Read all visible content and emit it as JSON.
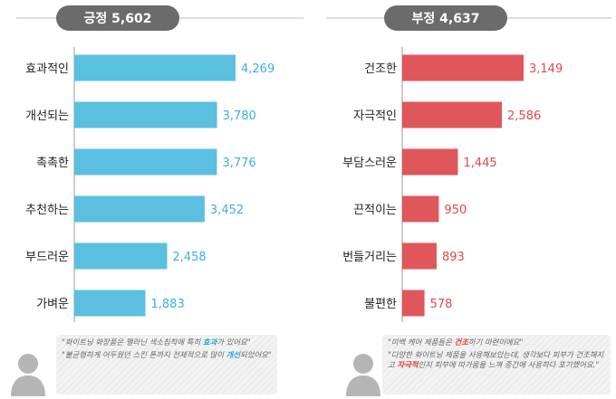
{
  "colors": {
    "positive": "#5bbfe0",
    "positive_text": "#3ab0dc",
    "negative": "#e0575b",
    "negative_text": "#e04848",
    "header_bg": "#6b6b6b",
    "gray_line": "#bbbbbb"
  },
  "chart_data": [
    {
      "type": "bar",
      "orientation": "horizontal",
      "title": "긍정",
      "total": "5,602",
      "categories": [
        "효과적인",
        "개선되는",
        "촉촉한",
        "추천하는",
        "부드러운",
        "가벼운"
      ],
      "values": [
        4269,
        3780,
        3776,
        3452,
        2458,
        1883
      ],
      "value_labels": [
        "4,269",
        "3,780",
        "3,776",
        "3,452",
        "2,458",
        "1,883"
      ]
    },
    {
      "type": "bar",
      "orientation": "horizontal",
      "title": "부정",
      "total": "4,637",
      "categories": [
        "건조한",
        "자극적인",
        "부담스러운",
        "끈적이는",
        "번들거리는",
        "불편한"
      ],
      "values": [
        3149,
        2586,
        1445,
        950,
        893,
        578
      ],
      "value_labels": [
        "3,149",
        "2,586",
        "1,445",
        "950",
        "893",
        "578"
      ]
    }
  ],
  "quotes": {
    "positive": [
      {
        "before": "\"화이트닝 화장품은 멜라닌 색소침착에 특히 ",
        "highlight": "효과",
        "after": "가 있어요\""
      },
      {
        "before": "\"불균형하게 어두웠던 스킨 톤까지 전체적으로 많이 ",
        "highlight": "개선",
        "after": "되었어요\""
      }
    ],
    "negative": [
      {
        "before": "\"미백 케어 제품들은 ",
        "highlight": "건조",
        "after": "하기 마련이에요\""
      },
      {
        "before": "\"다양한 화이트닝 제품을 사용해보았는데, 생각보다 피부가 건조해지고 ",
        "highlight": "자극적",
        "after": "인지 피부에 따가움을 느껴 중간에 사용하다 포기했어요.\""
      }
    ]
  }
}
